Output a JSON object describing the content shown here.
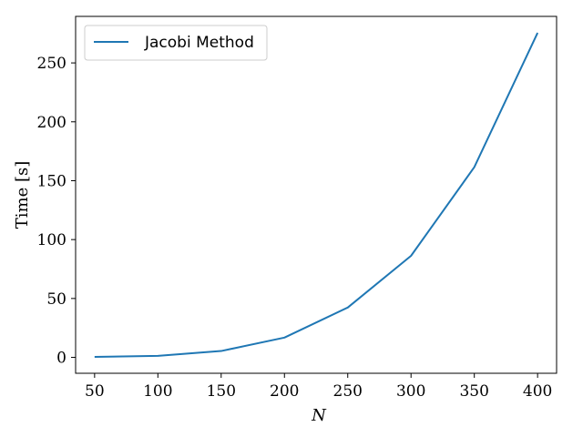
{
  "chart_data": {
    "type": "line",
    "title": "",
    "xlabel": "N",
    "ylabel": "Time [s]",
    "x": [
      50,
      100,
      150,
      200,
      250,
      300,
      350,
      400
    ],
    "series": [
      {
        "name": "Jacobi Method",
        "color": "#1f77b4",
        "values": [
          0.4,
          1.3,
          5.4,
          16.8,
          42.3,
          86.2,
          161.5,
          275.5
        ]
      }
    ],
    "xlim": [
      35,
      415
    ],
    "ylim": [
      -13.5,
      289.5
    ],
    "xticks": [
      50,
      100,
      150,
      200,
      250,
      300,
      350,
      400
    ],
    "xtick_labels": [
      "50",
      "100",
      "150",
      "200",
      "250",
      "300",
      "350",
      "400"
    ],
    "yticks": [
      0,
      50,
      100,
      150,
      200,
      250
    ],
    "ytick_labels": [
      "0",
      "50",
      "100",
      "150",
      "200",
      "250"
    ],
    "grid": false,
    "legend_position": "top-left"
  }
}
